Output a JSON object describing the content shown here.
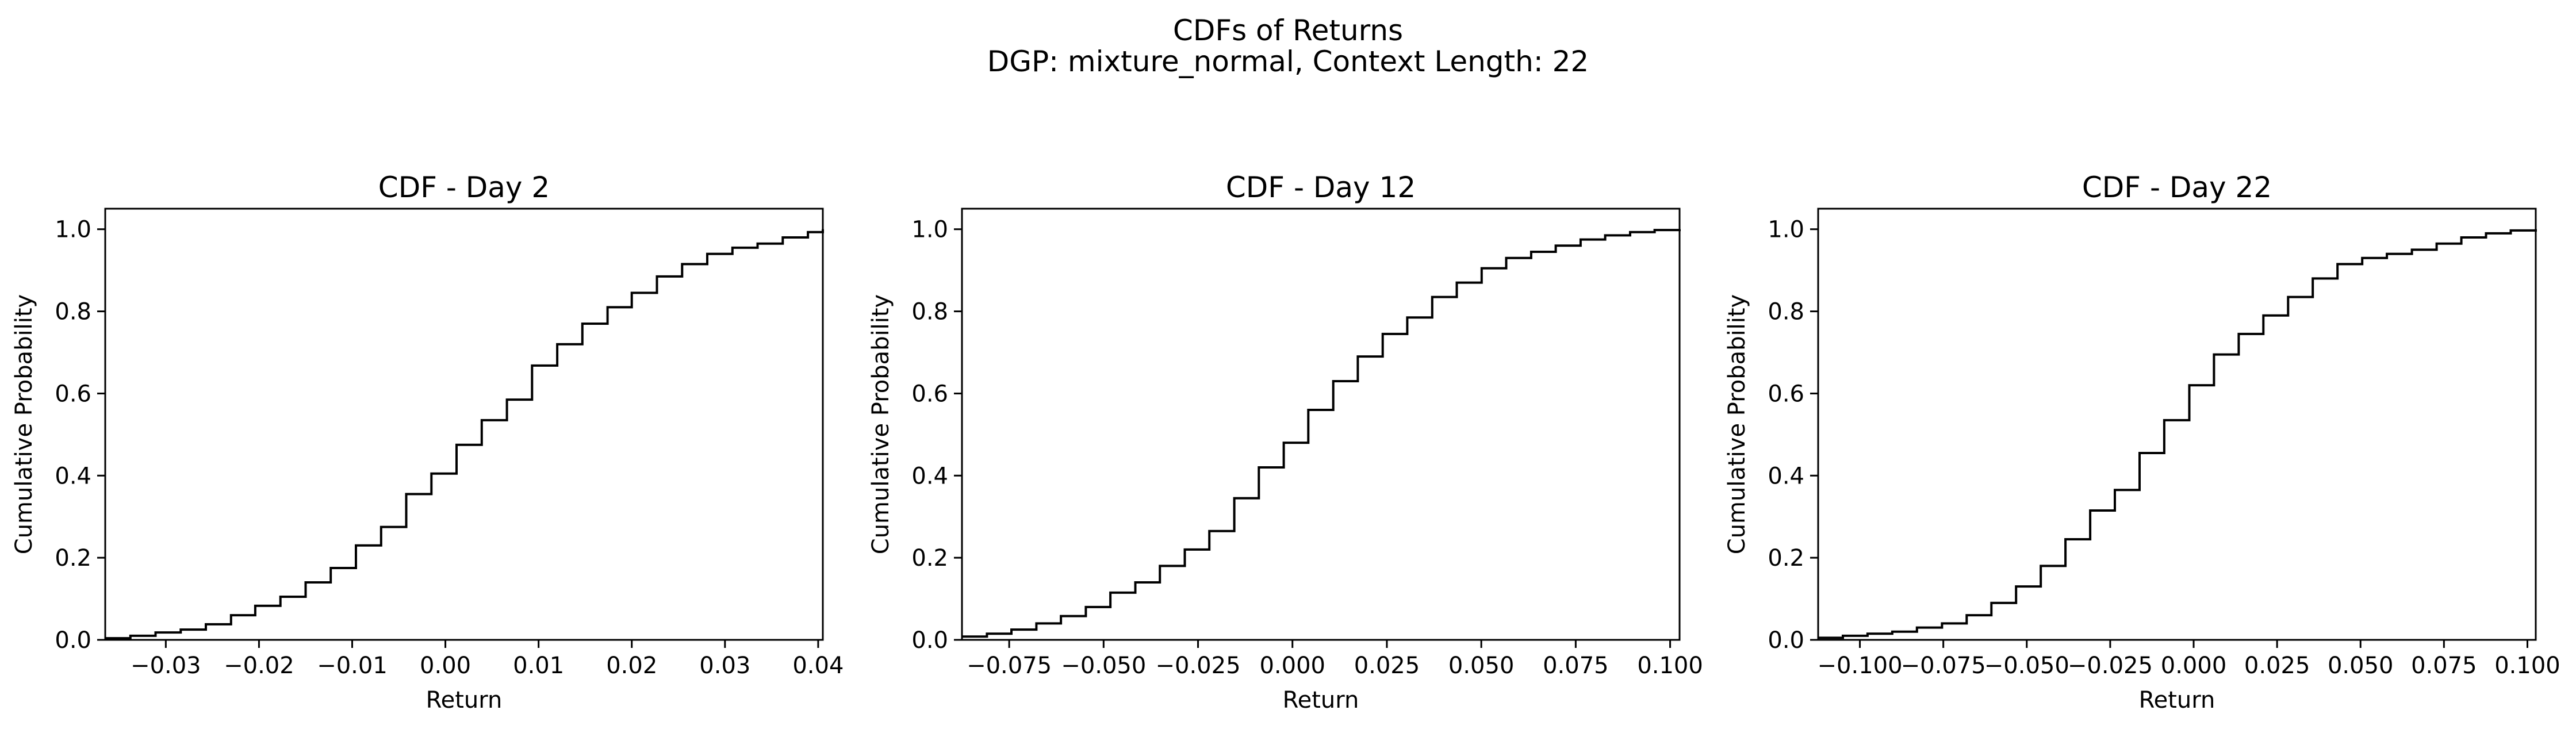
{
  "figure": {
    "title": "CDFs of Returns",
    "subtitle": "DGP: mixture_normal, Context Length: 22"
  },
  "chart_data": [
    {
      "type": "line",
      "step": true,
      "title": "CDF - Day 2",
      "xlabel": "Return",
      "ylabel": "Cumulative Probability",
      "xlim": [
        -0.0365,
        0.0405
      ],
      "ylim": [
        0.0,
        1.05
      ],
      "xticks": [
        -0.03,
        -0.02,
        -0.01,
        0.0,
        0.01,
        0.02,
        0.03,
        0.04
      ],
      "xtick_labels": [
        "−0.03",
        "−0.02",
        "−0.01",
        "0.00",
        "0.01",
        "0.02",
        "0.03",
        "0.04"
      ],
      "yticks": [
        0.0,
        0.2,
        0.4,
        0.6,
        0.8,
        1.0
      ],
      "ytick_labels": [
        "0.0",
        "0.2",
        "0.4",
        "0.6",
        "0.8",
        "1.0"
      ],
      "grid": false,
      "color": "#000000",
      "series": [
        {
          "x": [
            -0.0365,
            -0.0338,
            -0.0311,
            -0.0284,
            -0.0257,
            -0.023,
            -0.0204,
            -0.0177,
            -0.015,
            -0.0123,
            -0.0096,
            -0.0069,
            -0.0042,
            -0.0015,
            0.0012,
            0.0039,
            0.0066,
            0.0093,
            0.012,
            0.0147,
            0.0174,
            0.02,
            0.0227,
            0.0254,
            0.0281,
            0.0308,
            0.0335,
            0.0362,
            0.0389,
            0.0405
          ],
          "y": [
            0.004,
            0.01,
            0.018,
            0.025,
            0.038,
            0.06,
            0.083,
            0.105,
            0.14,
            0.175,
            0.23,
            0.275,
            0.355,
            0.405,
            0.475,
            0.535,
            0.585,
            0.668,
            0.72,
            0.77,
            0.81,
            0.845,
            0.885,
            0.915,
            0.94,
            0.955,
            0.965,
            0.98,
            0.993,
            1.0
          ]
        }
      ]
    },
    {
      "type": "line",
      "step": true,
      "title": "CDF - Day 12",
      "xlabel": "Return",
      "ylabel": "Cumulative Probability",
      "xlim": [
        -0.0875,
        0.1025
      ],
      "ylim": [
        0.0,
        1.05
      ],
      "xticks": [
        -0.075,
        -0.05,
        -0.025,
        0.0,
        0.025,
        0.05,
        0.075,
        0.1
      ],
      "xtick_labels": [
        "−0.075",
        "−0.050",
        "−0.025",
        "0.000",
        "0.025",
        "0.050",
        "0.075",
        "0.100"
      ],
      "yticks": [
        0.0,
        0.2,
        0.4,
        0.6,
        0.8,
        1.0
      ],
      "ytick_labels": [
        "0.0",
        "0.2",
        "0.4",
        "0.6",
        "0.8",
        "1.0"
      ],
      "grid": false,
      "color": "#000000",
      "series": [
        {
          "x": [
            -0.0875,
            -0.0809,
            -0.0744,
            -0.0678,
            -0.0613,
            -0.0547,
            -0.0482,
            -0.0416,
            -0.0351,
            -0.0285,
            -0.022,
            -0.0154,
            -0.0089,
            -0.0023,
            0.0042,
            0.0108,
            0.0173,
            0.0239,
            0.0304,
            0.037,
            0.0435,
            0.0501,
            0.0566,
            0.0632,
            0.0697,
            0.0763,
            0.0828,
            0.0894,
            0.0959,
            0.1025
          ],
          "y": [
            0.008,
            0.015,
            0.025,
            0.04,
            0.058,
            0.08,
            0.115,
            0.14,
            0.18,
            0.22,
            0.265,
            0.345,
            0.42,
            0.48,
            0.56,
            0.63,
            0.69,
            0.745,
            0.785,
            0.835,
            0.87,
            0.905,
            0.93,
            0.945,
            0.96,
            0.975,
            0.985,
            0.993,
            0.998,
            1.0
          ]
        }
      ]
    },
    {
      "type": "line",
      "step": true,
      "title": "CDF - Day 22",
      "xlabel": "Return",
      "ylabel": "Cumulative Probability",
      "xlim": [
        -0.1125,
        0.1025
      ],
      "ylim": [
        0.0,
        1.05
      ],
      "xticks": [
        -0.1,
        -0.075,
        -0.05,
        -0.025,
        0.0,
        0.025,
        0.05,
        0.075,
        0.1
      ],
      "xtick_labels": [
        "−0.100",
        "−0.075",
        "−0.050",
        "−0.025",
        "0.000",
        "0.025",
        "0.050",
        "0.075",
        "0.100"
      ],
      "yticks": [
        0.0,
        0.2,
        0.4,
        0.6,
        0.8,
        1.0
      ],
      "ytick_labels": [
        "0.0",
        "0.2",
        "0.4",
        "0.6",
        "0.8",
        "1.0"
      ],
      "grid": false,
      "color": "#000000",
      "series": [
        {
          "x": [
            -0.1125,
            -0.1051,
            -0.0977,
            -0.0903,
            -0.0829,
            -0.0754,
            -0.068,
            -0.0606,
            -0.0532,
            -0.0458,
            -0.0384,
            -0.031,
            -0.0236,
            -0.0162,
            -0.0088,
            -0.0013,
            0.0061,
            0.0135,
            0.0209,
            0.0283,
            0.0357,
            0.0431,
            0.0505,
            0.0579,
            0.0654,
            0.0728,
            0.0802,
            0.0876,
            0.095,
            0.1025
          ],
          "y": [
            0.005,
            0.01,
            0.015,
            0.02,
            0.03,
            0.04,
            0.06,
            0.09,
            0.13,
            0.18,
            0.245,
            0.315,
            0.365,
            0.455,
            0.535,
            0.62,
            0.695,
            0.745,
            0.79,
            0.835,
            0.88,
            0.915,
            0.93,
            0.94,
            0.95,
            0.965,
            0.98,
            0.99,
            0.997,
            1.0
          ]
        }
      ]
    }
  ]
}
